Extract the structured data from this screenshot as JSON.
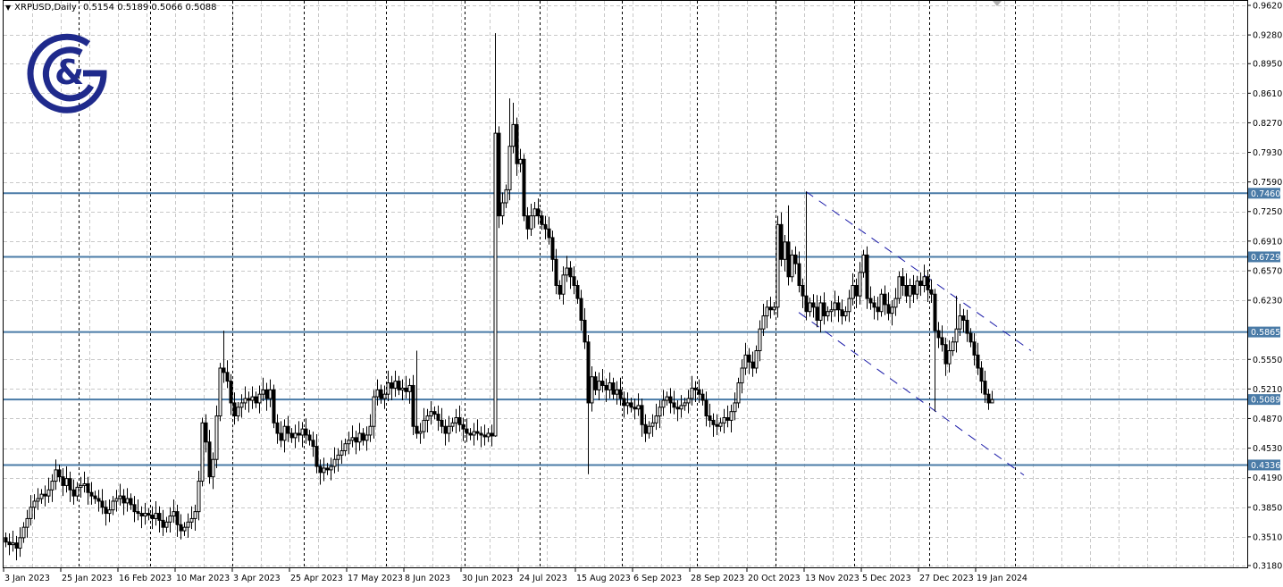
{
  "header": {
    "symbol_timeframe": "XRPUSD,Daily",
    "ohlc": "0.5154 0.5189 0.5066 0.5088",
    "menu_icon": "triangle-down-icon"
  },
  "logo": {
    "text": "G&G",
    "color": "#1f2a8c"
  },
  "colors": {
    "level_line": "#4a7ba7",
    "channel": "#1a1aa8",
    "bull_body": "#ffffff",
    "bear_body": "#000000"
  },
  "chart_data": {
    "type": "candlestick",
    "symbol": "XRPUSD",
    "timeframe": "Daily",
    "ylim": [
      0.318,
      0.962
    ],
    "y_ticks": [
      "0.9620",
      "0.9280",
      "0.8950",
      "0.8610",
      "0.8270",
      "0.7930",
      "0.7590",
      "0.7250",
      "0.6910",
      "0.6570",
      "0.6230",
      "0.5550",
      "0.5210",
      "0.4870",
      "0.4530",
      "0.4190",
      "0.3850",
      "0.3510",
      "0.3180"
    ],
    "x_labels": [
      {
        "bar": 0,
        "label": "3 Jan 2023"
      },
      {
        "bar": 16,
        "label": "25 Jan 2023"
      },
      {
        "bar": 32,
        "label": "16 Feb 2023"
      },
      {
        "bar": 48,
        "label": "10 Mar 2023"
      },
      {
        "bar": 64,
        "label": "3 Apr 2023"
      },
      {
        "bar": 80,
        "label": "25 Apr 2023"
      },
      {
        "bar": 96,
        "label": "17 May 2023"
      },
      {
        "bar": 112,
        "label": "8 Jun 2023"
      },
      {
        "bar": 128,
        "label": "30 Jun 2023"
      },
      {
        "bar": 144,
        "label": "24 Jul 2023"
      },
      {
        "bar": 160,
        "label": "15 Aug 2023"
      },
      {
        "bar": 176,
        "label": "6 Sep 2023"
      },
      {
        "bar": 192,
        "label": "28 Sep 2023"
      },
      {
        "bar": 208,
        "label": "20 Oct 2023"
      },
      {
        "bar": 224,
        "label": "13 Nov 2023"
      },
      {
        "bar": 240,
        "label": "5 Dec 2023"
      },
      {
        "bar": 256,
        "label": "27 Dec 2023"
      },
      {
        "bar": 272,
        "label": "19 Jan 2024"
      }
    ],
    "grid": true,
    "close": [
      0.345,
      0.342,
      0.344,
      0.338,
      0.35,
      0.362,
      0.372,
      0.385,
      0.392,
      0.395,
      0.4,
      0.398,
      0.405,
      0.415,
      0.428,
      0.42,
      0.41,
      0.418,
      0.405,
      0.398,
      0.408,
      0.41,
      0.412,
      0.402,
      0.398,
      0.395,
      0.392,
      0.385,
      0.378,
      0.382,
      0.392,
      0.395,
      0.398,
      0.39,
      0.395,
      0.388,
      0.38,
      0.378,
      0.375,
      0.378,
      0.376,
      0.372,
      0.378,
      0.37,
      0.362,
      0.368,
      0.375,
      0.38,
      0.365,
      0.358,
      0.362,
      0.368,
      0.372,
      0.38,
      0.415,
      0.482,
      0.46,
      0.42,
      0.44,
      0.49,
      0.545,
      0.54,
      0.53,
      0.505,
      0.49,
      0.5,
      0.505,
      0.51,
      0.508,
      0.512,
      0.505,
      0.515,
      0.52,
      0.51,
      0.52,
      0.482,
      0.47,
      0.462,
      0.478,
      0.47,
      0.465,
      0.47,
      0.468,
      0.475,
      0.468,
      0.462,
      0.455,
      0.432,
      0.425,
      0.43,
      0.428,
      0.432,
      0.44,
      0.445,
      0.45,
      0.458,
      0.462,
      0.465,
      0.46,
      0.47,
      0.462,
      0.468,
      0.478,
      0.512,
      0.52,
      0.51,
      0.515,
      0.528,
      0.522,
      0.53,
      0.52,
      0.522,
      0.518,
      0.525,
      0.478,
      0.47,
      0.472,
      0.485,
      0.49,
      0.495,
      0.492,
      0.485,
      0.478,
      0.47,
      0.478,
      0.482,
      0.488,
      0.48,
      0.475,
      0.47,
      0.468,
      0.472,
      0.47,
      0.468,
      0.466,
      0.47,
      0.467,
      0.815,
      0.72,
      0.735,
      0.75,
      0.8,
      0.825,
      0.78,
      0.785,
      0.72,
      0.705,
      0.72,
      0.728,
      0.72,
      0.71,
      0.705,
      0.695,
      0.67,
      0.64,
      0.63,
      0.652,
      0.66,
      0.65,
      0.64,
      0.625,
      0.6,
      0.575,
      0.505,
      0.535,
      0.52,
      0.53,
      0.525,
      0.52,
      0.528,
      0.515,
      0.52,
      0.51,
      0.502,
      0.505,
      0.5,
      0.498,
      0.502,
      0.48,
      0.47,
      0.478,
      0.482,
      0.49,
      0.5,
      0.508,
      0.512,
      0.505,
      0.5,
      0.498,
      0.502,
      0.505,
      0.51,
      0.522,
      0.52,
      0.515,
      0.508,
      0.49,
      0.485,
      0.48,
      0.478,
      0.482,
      0.488,
      0.485,
      0.495,
      0.505,
      0.528,
      0.545,
      0.56,
      0.552,
      0.545,
      0.565,
      0.59,
      0.605,
      0.615,
      0.612,
      0.615,
      0.71,
      0.67,
      0.69,
      0.65,
      0.675,
      0.665,
      0.64,
      0.628,
      0.61,
      0.62,
      0.615,
      0.6,
      0.62,
      0.605,
      0.61,
      0.612,
      0.62,
      0.612,
      0.605,
      0.61,
      0.625,
      0.64,
      0.628,
      0.655,
      0.675,
      0.625,
      0.62,
      0.615,
      0.61,
      0.63,
      0.618,
      0.608,
      0.615,
      0.625,
      0.65,
      0.64,
      0.628,
      0.64,
      0.63,
      0.645,
      0.64,
      0.65,
      0.635,
      0.63,
      0.588,
      0.58,
      0.572,
      0.55,
      0.565,
      0.575,
      0.59,
      0.605,
      0.6,
      0.585,
      0.575,
      0.56,
      0.545,
      0.53,
      0.515,
      0.505,
      0.5088
    ],
    "first_open": 0.35,
    "high_overrides": {
      "61": 0.588,
      "115": 0.565,
      "137": 0.93,
      "141": 0.855,
      "142": 0.85,
      "219": 0.732,
      "224": 0.748,
      "266": 0.628,
      "276": 0.5189
    },
    "low_overrides": {
      "137": 0.466,
      "163": 0.423,
      "260": 0.495,
      "275": 0.497,
      "276": 0.5066
    },
    "horizontal_levels": [
      "0.7460",
      "0.6729",
      "0.5865",
      "0.5089",
      "0.4336"
    ],
    "channel": {
      "upper": [
        {
          "bar": 224,
          "price": 0.748
        },
        {
          "bar": 287,
          "price": 0.565
        }
      ],
      "lower": [
        {
          "bar": 222,
          "price": 0.609
        },
        {
          "bar": 285,
          "price": 0.422
        }
      ]
    }
  }
}
